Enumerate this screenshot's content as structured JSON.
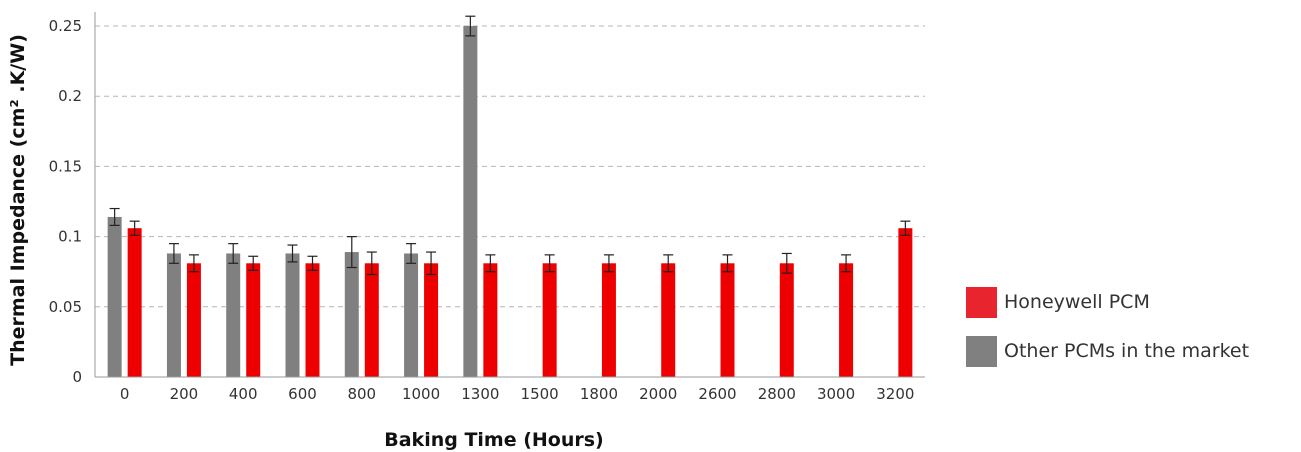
{
  "chart_data": {
    "type": "bar",
    "categories": [
      "0",
      "200",
      "400",
      "600",
      "800",
      "1000",
      "1300",
      "1500",
      "1800",
      "2000",
      "2600",
      "2800",
      "3000",
      "3200"
    ],
    "series": [
      {
        "name": "Other PCMs in the market",
        "color": "#808080",
        "values": [
          0.114,
          0.088,
          0.088,
          0.088,
          0.089,
          0.088,
          0.25,
          null,
          null,
          null,
          null,
          null,
          null,
          null
        ],
        "errors": [
          0.006,
          0.007,
          0.007,
          0.006,
          0.011,
          0.007,
          0.007,
          null,
          null,
          null,
          null,
          null,
          null,
          null
        ]
      },
      {
        "name": "Honeywell PCM",
        "color": "#ee0000",
        "values": [
          0.106,
          0.081,
          0.081,
          0.081,
          0.081,
          0.081,
          0.081,
          0.081,
          0.081,
          0.081,
          0.081,
          0.081,
          0.081,
          0.106
        ],
        "errors": [
          0.005,
          0.006,
          0.005,
          0.005,
          0.008,
          0.008,
          0.006,
          0.006,
          0.006,
          0.006,
          0.006,
          0.007,
          0.006,
          0.005
        ]
      }
    ],
    "xlabel": "Baking Time (Hours)",
    "ylabel": "Thermal Impedance (cm² .K/W)",
    "ylim": [
      0,
      0.26
    ],
    "yticks": [
      "0",
      "0.05",
      "0.1",
      "0.15",
      "0.2",
      "0.25"
    ],
    "grid": true,
    "legend_position": "right"
  },
  "legend": [
    {
      "label": "Honeywell PCM",
      "color": "#e8252f"
    },
    {
      "label": "Other PCMs in the market",
      "color": "#808080"
    }
  ]
}
